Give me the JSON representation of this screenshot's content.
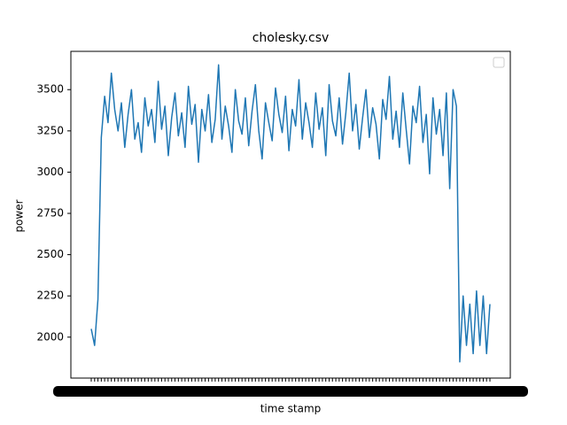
{
  "chart_data": {
    "type": "line",
    "title": "cholesky.csv",
    "x_label": "time stamp",
    "y_label": "power",
    "categories": [
      null,
      null,
      null,
      null,
      null,
      null,
      null,
      null,
      null,
      null,
      null,
      null,
      null,
      null,
      null,
      null,
      null,
      null,
      null,
      null,
      null,
      null,
      null,
      null,
      null,
      null,
      null,
      null,
      null,
      null,
      null,
      null,
      null,
      null,
      null,
      null,
      null,
      null,
      null,
      null,
      null,
      null,
      null,
      null,
      null,
      null,
      null,
      null,
      null,
      null,
      null,
      null,
      null,
      null,
      null,
      null,
      null,
      null,
      null,
      null,
      null,
      null,
      null,
      null,
      null,
      null,
      null,
      null,
      null,
      null,
      null,
      null,
      null,
      null,
      null,
      null,
      null,
      null,
      null,
      null,
      null,
      null,
      null,
      null,
      null,
      null,
      null,
      null,
      null,
      null,
      null,
      null,
      null,
      null,
      null,
      null,
      null,
      null,
      null,
      null,
      null,
      null,
      null,
      null,
      null,
      null,
      null,
      null,
      null,
      null,
      null,
      null,
      null,
      null,
      null,
      null,
      null,
      null,
      null,
      null
    ],
    "series": [
      {
        "color": "#1f77b4",
        "values": [
          2050,
          1950,
          2230,
          3210,
          3460,
          3300,
          3600,
          3380,
          3250,
          3420,
          3150,
          3350,
          3500,
          3200,
          3300,
          3120,
          3450,
          3280,
          3380,
          3180,
          3550,
          3260,
          3400,
          3100,
          3330,
          3480,
          3220,
          3360,
          3150,
          3520,
          3290,
          3410,
          3060,
          3380,
          3250,
          3470,
          3180,
          3320,
          3650,
          3200,
          3400,
          3280,
          3120,
          3500,
          3310,
          3230,
          3450,
          3160,
          3370,
          3530,
          3250,
          3080,
          3420,
          3300,
          3190,
          3510,
          3350,
          3240,
          3460,
          3130,
          3380,
          3280,
          3560,
          3200,
          3420,
          3300,
          3150,
          3480,
          3260,
          3390,
          3100,
          3530,
          3310,
          3220,
          3450,
          3170,
          3360,
          3600,
          3250,
          3410,
          3140,
          3330,
          3500,
          3210,
          3390,
          3290,
          3080,
          3440,
          3320,
          3580,
          3200,
          3370,
          3150,
          3480,
          3260,
          3050,
          3400,
          3300,
          3520,
          3180,
          3350,
          2990,
          3450,
          3230,
          3380,
          3100,
          3480,
          2900,
          3500,
          3400,
          1850,
          2250,
          1950,
          2200,
          1900,
          2280,
          1950,
          2250,
          1900,
          2200
        ]
      }
    ],
    "ylim": [
      1752,
      3732
    ],
    "yticks": [
      2000,
      2250,
      2500,
      2750,
      3000,
      3250,
      3500
    ]
  }
}
